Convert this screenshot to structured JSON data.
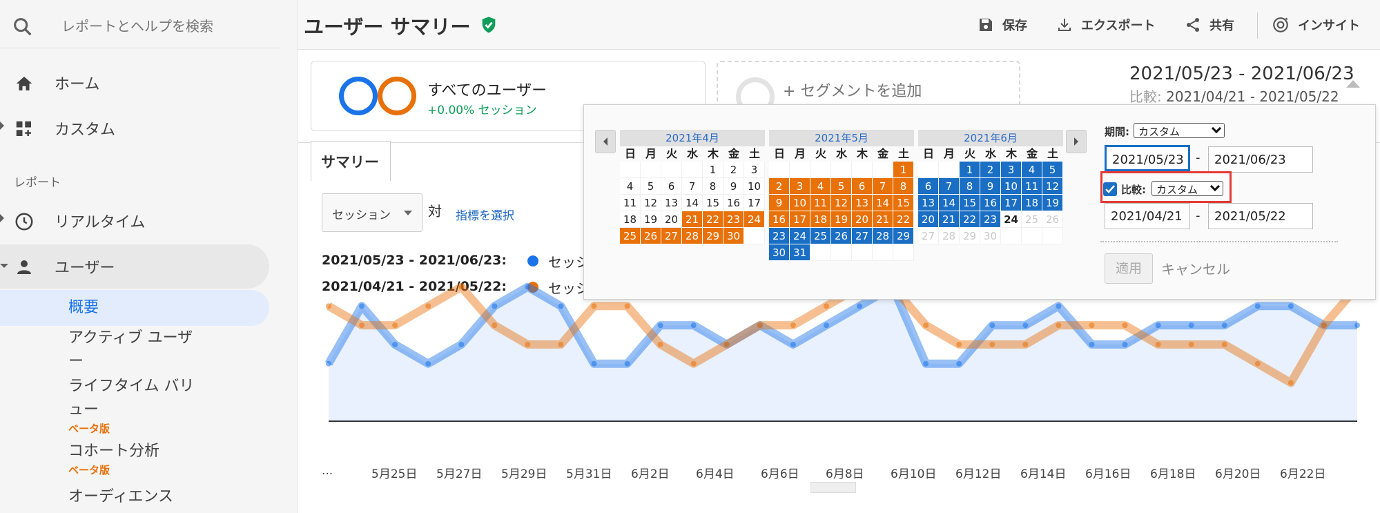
{
  "sidebar": {
    "search_placeholder": "レポートとヘルプを検索",
    "home": "ホーム",
    "custom": "カスタム",
    "section_reports": "レポート",
    "realtime": "リアルタイム",
    "users": "ユーザー",
    "sub_items": {
      "overview": "概要",
      "active_users_1": "アクティブ ユーザ",
      "active_users_2": "ー",
      "lifetime_1": "ライフタイム バリ",
      "lifetime_2": "ュー",
      "lifetime_beta": "ベータ版",
      "cohort": "コホート分析",
      "cohort_beta": "ベータ版",
      "audience": "オーディエンス"
    }
  },
  "header": {
    "title": "ユーザー サマリー",
    "save": "保存",
    "export": "エクスポート",
    "share": "共有",
    "insights": "インサイト"
  },
  "segments": {
    "all_users": "すべてのユーザー",
    "all_users_sub": "+0.00% セッション",
    "add_segment": "+ セグメントを追加"
  },
  "date": {
    "range": "2021/05/23 - 2021/06/23",
    "compare_label": "比較:",
    "compare_range": "2021/04/21 - 2021/05/22"
  },
  "summary": {
    "tab": "サマリー",
    "metric": "セッション",
    "vs": "対",
    "select_metric": "指標を選択",
    "legend": [
      {
        "range": "2021/05/23 - 2021/06/23:",
        "label": "セッシ"
      },
      {
        "range": "2021/04/21 - 2021/05/22:",
        "label": "セッシ"
      }
    ]
  },
  "chart_data": {
    "type": "area",
    "title": "",
    "x_tick_labels": [
      "...",
      "5月25日",
      "5月27日",
      "5月29日",
      "5月31日",
      "6月2日",
      "6月4日",
      "6月6日",
      "6月8日",
      "6月10日",
      "6月12日",
      "6月14日",
      "6月16日",
      "6月18日",
      "6月20日",
      "6月22日"
    ],
    "series": [
      {
        "name": "セッション",
        "color": "#1a73e8",
        "values": [
          3,
          6,
          4,
          3,
          4,
          6,
          7,
          6,
          3,
          3,
          5,
          5,
          4,
          5,
          4,
          5,
          6,
          7,
          3,
          3,
          5,
          5,
          6,
          4,
          4,
          5,
          5,
          5,
          6,
          6,
          5,
          5
        ]
      },
      {
        "name": "セッション",
        "color": "#e8710a",
        "values": [
          6,
          5,
          5,
          6,
          7,
          5,
          4,
          4,
          6,
          6,
          4,
          3,
          4,
          5,
          5,
          6,
          7,
          7,
          5,
          4,
          4,
          4,
          5,
          5,
          5,
          4,
          4,
          4,
          3,
          2,
          5,
          7
        ]
      }
    ],
    "grid": false
  },
  "calendar": {
    "months": [
      {
        "title": "2021年4月",
        "dow": [
          "日",
          "月",
          "火",
          "水",
          "木",
          "金",
          "土"
        ],
        "weeks": [
          [
            {
              "d": "",
              "c": ""
            },
            {
              "d": "",
              "c": ""
            },
            {
              "d": "",
              "c": ""
            },
            {
              "d": "",
              "c": ""
            },
            {
              "d": "1",
              "c": ""
            },
            {
              "d": "2",
              "c": ""
            },
            {
              "d": "3",
              "c": ""
            }
          ],
          [
            {
              "d": "4",
              "c": ""
            },
            {
              "d": "5",
              "c": ""
            },
            {
              "d": "6",
              "c": ""
            },
            {
              "d": "7",
              "c": ""
            },
            {
              "d": "8",
              "c": ""
            },
            {
              "d": "9",
              "c": ""
            },
            {
              "d": "10",
              "c": ""
            }
          ],
          [
            {
              "d": "11",
              "c": ""
            },
            {
              "d": "12",
              "c": ""
            },
            {
              "d": "13",
              "c": ""
            },
            {
              "d": "14",
              "c": ""
            },
            {
              "d": "15",
              "c": ""
            },
            {
              "d": "16",
              "c": ""
            },
            {
              "d": "17",
              "c": ""
            }
          ],
          [
            {
              "d": "18",
              "c": ""
            },
            {
              "d": "19",
              "c": ""
            },
            {
              "d": "20",
              "c": ""
            },
            {
              "d": "21",
              "c": "orange"
            },
            {
              "d": "22",
              "c": "orange"
            },
            {
              "d": "23",
              "c": "orange"
            },
            {
              "d": "24",
              "c": "orange"
            }
          ],
          [
            {
              "d": "25",
              "c": "orange"
            },
            {
              "d": "26",
              "c": "orange"
            },
            {
              "d": "27",
              "c": "orange"
            },
            {
              "d": "28",
              "c": "orange"
            },
            {
              "d": "29",
              "c": "orange"
            },
            {
              "d": "30",
              "c": "orange"
            },
            {
              "d": "",
              "c": ""
            }
          ]
        ]
      },
      {
        "title": "2021年5月",
        "dow": [
          "日",
          "月",
          "火",
          "水",
          "木",
          "金",
          "土"
        ],
        "weeks": [
          [
            {
              "d": "",
              "c": ""
            },
            {
              "d": "",
              "c": ""
            },
            {
              "d": "",
              "c": ""
            },
            {
              "d": "",
              "c": ""
            },
            {
              "d": "",
              "c": ""
            },
            {
              "d": "",
              "c": ""
            },
            {
              "d": "1",
              "c": "orange"
            }
          ],
          [
            {
              "d": "2",
              "c": "orange"
            },
            {
              "d": "3",
              "c": "orange"
            },
            {
              "d": "4",
              "c": "orange"
            },
            {
              "d": "5",
              "c": "orange"
            },
            {
              "d": "6",
              "c": "orange"
            },
            {
              "d": "7",
              "c": "orange"
            },
            {
              "d": "8",
              "c": "orange"
            }
          ],
          [
            {
              "d": "9",
              "c": "orange"
            },
            {
              "d": "10",
              "c": "orange"
            },
            {
              "d": "11",
              "c": "orange"
            },
            {
              "d": "12",
              "c": "orange"
            },
            {
              "d": "13",
              "c": "orange"
            },
            {
              "d": "14",
              "c": "orange"
            },
            {
              "d": "15",
              "c": "orange"
            }
          ],
          [
            {
              "d": "16",
              "c": "orange"
            },
            {
              "d": "17",
              "c": "orange"
            },
            {
              "d": "18",
              "c": "orange"
            },
            {
              "d": "19",
              "c": "orange"
            },
            {
              "d": "20",
              "c": "orange"
            },
            {
              "d": "21",
              "c": "orange"
            },
            {
              "d": "22",
              "c": "orange"
            }
          ],
          [
            {
              "d": "23",
              "c": "blue"
            },
            {
              "d": "24",
              "c": "blue"
            },
            {
              "d": "25",
              "c": "blue"
            },
            {
              "d": "26",
              "c": "blue"
            },
            {
              "d": "27",
              "c": "blue"
            },
            {
              "d": "28",
              "c": "blue"
            },
            {
              "d": "29",
              "c": "blue"
            }
          ],
          [
            {
              "d": "30",
              "c": "blue"
            },
            {
              "d": "31",
              "c": "blue"
            },
            {
              "d": "",
              "c": ""
            },
            {
              "d": "",
              "c": ""
            },
            {
              "d": "",
              "c": ""
            },
            {
              "d": "",
              "c": ""
            },
            {
              "d": "",
              "c": ""
            }
          ]
        ]
      },
      {
        "title": "2021年6月",
        "dow": [
          "日",
          "月",
          "火",
          "水",
          "木",
          "金",
          "土"
        ],
        "weeks": [
          [
            {
              "d": "",
              "c": ""
            },
            {
              "d": "",
              "c": ""
            },
            {
              "d": "1",
              "c": "blue"
            },
            {
              "d": "2",
              "c": "blue"
            },
            {
              "d": "3",
              "c": "blue"
            },
            {
              "d": "4",
              "c": "blue"
            },
            {
              "d": "5",
              "c": "blue"
            }
          ],
          [
            {
              "d": "6",
              "c": "blue"
            },
            {
              "d": "7",
              "c": "blue"
            },
            {
              "d": "8",
              "c": "blue"
            },
            {
              "d": "9",
              "c": "blue"
            },
            {
              "d": "10",
              "c": "blue"
            },
            {
              "d": "11",
              "c": "blue"
            },
            {
              "d": "12",
              "c": "blue"
            }
          ],
          [
            {
              "d": "13",
              "c": "blue"
            },
            {
              "d": "14",
              "c": "blue"
            },
            {
              "d": "15",
              "c": "blue"
            },
            {
              "d": "16",
              "c": "blue"
            },
            {
              "d": "17",
              "c": "blue"
            },
            {
              "d": "18",
              "c": "blue"
            },
            {
              "d": "19",
              "c": "blue"
            }
          ],
          [
            {
              "d": "20",
              "c": "blue"
            },
            {
              "d": "21",
              "c": "blue"
            },
            {
              "d": "22",
              "c": "blue"
            },
            {
              "d": "23",
              "c": "blue"
            },
            {
              "d": "24",
              "c": "today"
            },
            {
              "d": "25",
              "c": "future"
            },
            {
              "d": "26",
              "c": "future"
            }
          ],
          [
            {
              "d": "27",
              "c": "future"
            },
            {
              "d": "28",
              "c": "future"
            },
            {
              "d": "29",
              "c": "future"
            },
            {
              "d": "30",
              "c": "future"
            },
            {
              "d": "",
              "c": ""
            },
            {
              "d": "",
              "c": ""
            },
            {
              "d": "",
              "c": ""
            }
          ]
        ]
      }
    ],
    "period_label": "期間:",
    "period_value": "カスタム",
    "start": "2021/05/23",
    "end": "2021/06/23",
    "compare_label": "比較:",
    "compare_value": "カスタム",
    "compare_start": "2021/04/21",
    "compare_end": "2021/05/22",
    "dash": "-",
    "apply": "適用",
    "cancel": "キャンセル"
  },
  "colors": {
    "blue": "#1a73e8",
    "orange": "#e8710a",
    "green": "#0f9d58"
  }
}
